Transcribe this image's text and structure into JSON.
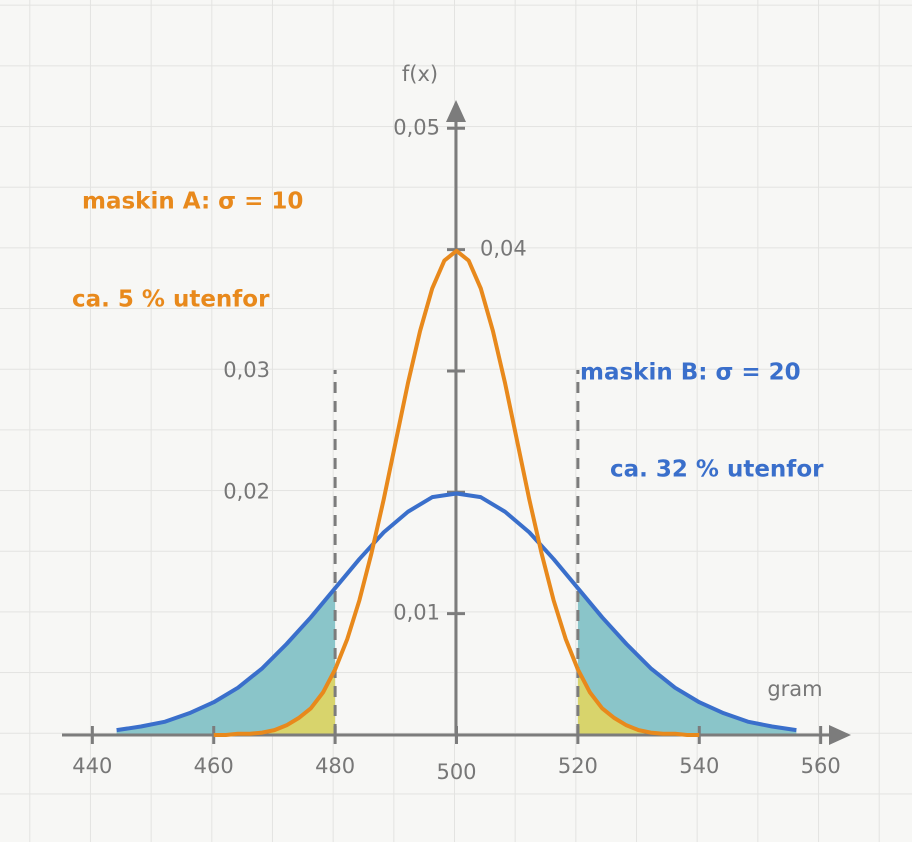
{
  "chart_data": {
    "type": "line",
    "x_label": "gram",
    "y_label": "f(x)",
    "xlim": [
      435,
      565
    ],
    "ylim": [
      0,
      0.052
    ],
    "xticks": [
      440,
      460,
      480,
      500,
      520,
      540,
      560
    ],
    "yticks": [
      {
        "value": 0.01,
        "label": "0,01"
      },
      {
        "value": 0.02,
        "label": "0,02"
      },
      {
        "value": 0.03,
        "label": "0,03"
      },
      {
        "value": 0.04,
        "label": "0,04"
      },
      {
        "value": 0.05,
        "label": "0,05"
      }
    ],
    "grid": true,
    "reference_lines": [
      480,
      520
    ],
    "series": [
      {
        "name": "maskin B",
        "color": "#3a6fcb",
        "fill": "#8ac5c9",
        "x": [
          444,
          448,
          452,
          456,
          460,
          464,
          468,
          472,
          476,
          480,
          484,
          488,
          492,
          496,
          500,
          504,
          508,
          512,
          516,
          520,
          524,
          528,
          532,
          536,
          540,
          544,
          548,
          552,
          556
        ],
        "values": [
          0.0004,
          0.0007,
          0.0011,
          0.0018,
          0.0027,
          0.0039,
          0.0055,
          0.0075,
          0.0097,
          0.0121,
          0.0145,
          0.0167,
          0.0184,
          0.0196,
          0.0199,
          0.0196,
          0.0184,
          0.0167,
          0.0145,
          0.0121,
          0.0097,
          0.0075,
          0.0055,
          0.0039,
          0.0027,
          0.0018,
          0.0011,
          0.0007,
          0.0004
        ]
      },
      {
        "name": "maskin A",
        "color": "#e8891c",
        "fill": "#d8d46c",
        "x": [
          460,
          462,
          464,
          466,
          468,
          470,
          472,
          474,
          476,
          478,
          480,
          482,
          484,
          486,
          488,
          490,
          492,
          494,
          496,
          498,
          500,
          502,
          504,
          506,
          508,
          510,
          512,
          514,
          516,
          518,
          520,
          522,
          524,
          526,
          528,
          530,
          532,
          534,
          536,
          538,
          540
        ],
        "values": [
          0.0,
          0.0,
          0.0001,
          0.0001,
          0.0002,
          0.0004,
          0.0008,
          0.0014,
          0.0022,
          0.0035,
          0.0054,
          0.0079,
          0.0111,
          0.015,
          0.0194,
          0.0242,
          0.029,
          0.0333,
          0.0368,
          0.0391,
          0.0399,
          0.0391,
          0.0368,
          0.0333,
          0.029,
          0.0242,
          0.0194,
          0.015,
          0.0111,
          0.0079,
          0.0054,
          0.0035,
          0.0022,
          0.0014,
          0.0008,
          0.0004,
          0.0002,
          0.0001,
          0.0001,
          0.0,
          0.0
        ]
      }
    ],
    "annotations": [
      {
        "text": "maskin A: σ = 10",
        "color": "#e8891c"
      },
      {
        "text": "ca. 5 % utenfor",
        "color": "#e8891c"
      },
      {
        "text": "maskin B: σ = 20",
        "color": "#3a6fcb"
      },
      {
        "text": "ca. 32 % utenfor",
        "color": "#3a6fcb"
      }
    ]
  }
}
